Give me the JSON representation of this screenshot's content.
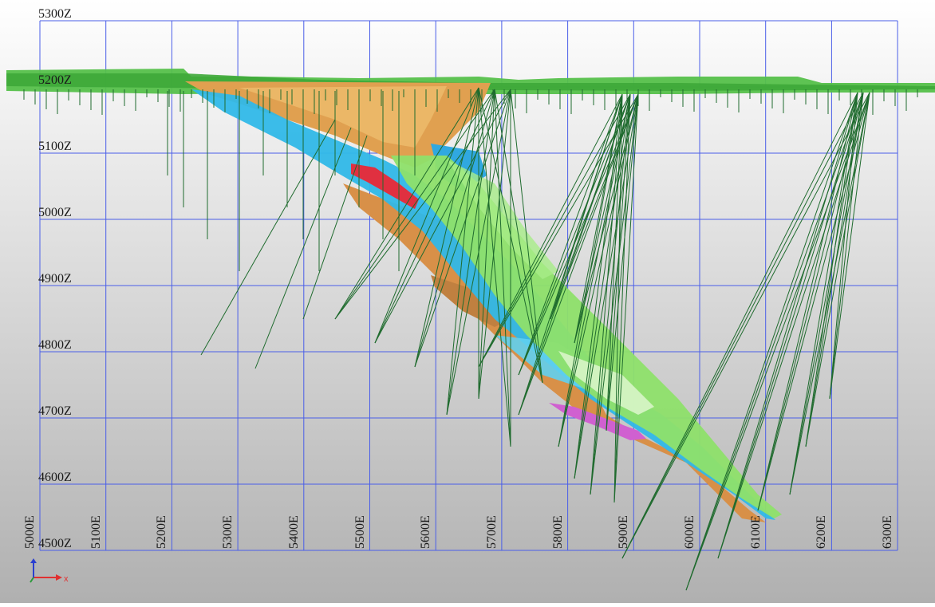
{
  "view": {
    "background_top": "#ffffff",
    "background_bottom": "#b0b0b0",
    "grid_color": "#4a5ee8",
    "drillhole_color": "#1f6b2e"
  },
  "elevation_labels": [
    "5300Z",
    "5200Z",
    "5100Z",
    "5000Z",
    "4900Z",
    "4800Z",
    "4700Z",
    "4600Z",
    "4500Z"
  ],
  "easting_labels": [
    "5000E",
    "5100E",
    "5200E",
    "5300E",
    "5400E",
    "5500E",
    "5600E",
    "5700E",
    "5800E",
    "5900E",
    "6000E",
    "6100E",
    "6200E",
    "6300E"
  ],
  "axis_triad": {
    "x_label": "x",
    "x_color": "#e03030",
    "z_color": "#2a3fd0",
    "y_color": "#2a9a3a"
  },
  "layers": {
    "topography": "#55c04a",
    "orange_unit": "#e0a050",
    "cyan_unit": "#30b8e8",
    "green_unit": "#8ee06a",
    "red_unit": "#e03040",
    "magenta_unit": "#d060d0"
  }
}
